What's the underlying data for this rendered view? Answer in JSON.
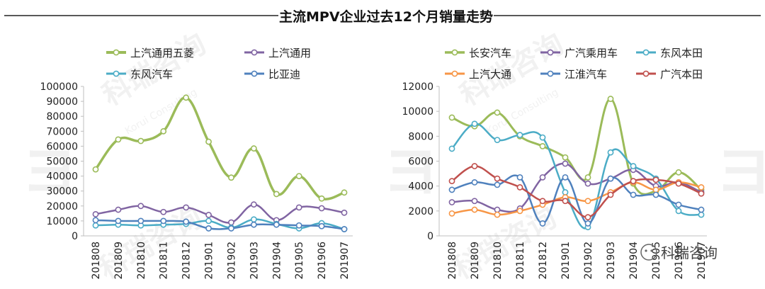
{
  "header": {
    "title": "主流MPV企业过去12个月销量走势"
  },
  "watermark": {
    "brand": "科瑞咨询",
    "sub": "Korui Consulting"
  },
  "footer": {
    "wechat_label": "科瑞咨询"
  },
  "chart_data": [
    {
      "type": "line",
      "categories": [
        "201808",
        "201809",
        "201810",
        "201811",
        "201812",
        "201901",
        "201902",
        "201903",
        "201904",
        "201905",
        "201906",
        "201907"
      ],
      "ylim": [
        0,
        100000
      ],
      "yticks": [
        0,
        10000,
        20000,
        30000,
        40000,
        50000,
        60000,
        70000,
        80000,
        90000,
        100000
      ],
      "legend_cols": 2,
      "series": [
        {
          "name": "上汽通用五菱",
          "color": "#9BBB59",
          "width": 3.5,
          "values": [
            44500,
            64500,
            63500,
            70000,
            92500,
            63000,
            39000,
            58500,
            28000,
            40000,
            25000,
            29000
          ]
        },
        {
          "name": "上汽通用",
          "color": "#8064A2",
          "width": 2.5,
          "values": [
            14500,
            17500,
            20000,
            16000,
            19000,
            14000,
            9000,
            21000,
            10500,
            19000,
            18500,
            15500
          ]
        },
        {
          "name": "东风汽车",
          "color": "#4BACC6",
          "width": 2.5,
          "values": [
            7000,
            7500,
            7000,
            7500,
            8000,
            10000,
            5500,
            11000,
            8000,
            5000,
            8500,
            4500
          ]
        },
        {
          "name": "比亚迪",
          "color": "#4F81BD",
          "width": 2.5,
          "values": [
            10500,
            10000,
            10000,
            10000,
            9500,
            5000,
            5000,
            7500,
            7500,
            7000,
            6500,
            4500
          ]
        }
      ]
    },
    {
      "type": "line",
      "categories": [
        "201808",
        "201809",
        "201810",
        "201811",
        "201812",
        "201901",
        "201902",
        "201903",
        "201904",
        "201905",
        "201906",
        "201907"
      ],
      "ylim": [
        0,
        12000
      ],
      "yticks": [
        0,
        2000,
        4000,
        6000,
        8000,
        10000,
        12000
      ],
      "legend_cols": 3,
      "series": [
        {
          "name": "长安汽车",
          "color": "#9BBB59",
          "width": 3,
          "values": [
            9500,
            8800,
            9900,
            8000,
            7200,
            6300,
            4700,
            11000,
            4200,
            3600,
            5100,
            3700
          ]
        },
        {
          "name": "广汽乘用车",
          "color": "#8064A2",
          "width": 2.5,
          "values": [
            2700,
            2800,
            2100,
            2200,
            4700,
            5800,
            4200,
            4600,
            5300,
            4000,
            4300,
            3500
          ]
        },
        {
          "name": "东风本田",
          "color": "#4BACC6",
          "width": 2.5,
          "values": [
            7000,
            9000,
            7700,
            8100,
            7900,
            3500,
            700,
            6700,
            5600,
            4600,
            2000,
            1700
          ]
        },
        {
          "name": "上汽大通",
          "color": "#F79646",
          "width": 2.5,
          "values": [
            1800,
            2100,
            1700,
            2000,
            2500,
            3100,
            2800,
            3500,
            4300,
            3700,
            4300,
            3900
          ]
        },
        {
          "name": "江淮汽车",
          "color": "#4F81BD",
          "width": 2.5,
          "values": [
            3700,
            4300,
            4100,
            4700,
            1000,
            4700,
            1000,
            4600,
            3300,
            3300,
            2500,
            2100
          ]
        },
        {
          "name": "广汽本田",
          "color": "#C0504D",
          "width": 2.5,
          "values": [
            4400,
            5600,
            4600,
            3900,
            2800,
            2800,
            1500,
            3300,
            4400,
            4500,
            4200,
            3400
          ]
        }
      ]
    }
  ]
}
